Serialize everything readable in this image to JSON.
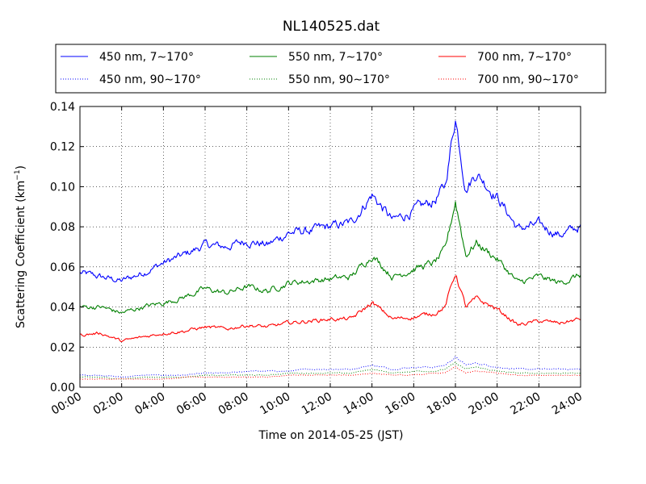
{
  "chart_data": {
    "type": "line",
    "title": "NL140525.dat",
    "xlabel": "Time on 2014-05-25 (JST)",
    "ylabel": "Scattering Coefficient (km⁻¹)",
    "ylabel_main": "Scattering Coefficient (km",
    "ylabel_sup": "−1",
    "ylabel_close": ")",
    "xlim": [
      "00:00",
      "24:00"
    ],
    "ylim": [
      0.0,
      0.14
    ],
    "grid": true,
    "legend_position": "top (above plot)",
    "xticks": [
      "00:00",
      "02:00",
      "04:00",
      "06:00",
      "08:00",
      "10:00",
      "12:00",
      "14:00",
      "16:00",
      "18:00",
      "20:00",
      "22:00",
      "24:00"
    ],
    "yticks": [
      "0.00",
      "0.02",
      "0.04",
      "0.06",
      "0.08",
      "0.10",
      "0.12",
      "0.14"
    ],
    "x": [
      "00:00",
      "01:00",
      "02:00",
      "03:00",
      "04:00",
      "05:00",
      "06:00",
      "07:00",
      "08:00",
      "09:00",
      "10:00",
      "11:00",
      "12:00",
      "13:00",
      "14:00",
      "15:00",
      "16:00",
      "17:00",
      "17:30",
      "18:00",
      "18:30",
      "19:00",
      "20:00",
      "21:00",
      "22:00",
      "23:00",
      "24:00"
    ],
    "series": [
      {
        "name": "450 nm, 7∼170°",
        "color": "#0000ff",
        "style": "solid",
        "values": [
          0.057,
          0.055,
          0.053,
          0.057,
          0.062,
          0.066,
          0.071,
          0.07,
          0.073,
          0.071,
          0.077,
          0.078,
          0.08,
          0.082,
          0.096,
          0.083,
          0.088,
          0.093,
          0.1,
          0.135,
          0.099,
          0.107,
          0.095,
          0.079,
          0.081,
          0.076,
          0.08
        ]
      },
      {
        "name": "450 nm, 90∼170°",
        "color": "#0000ff",
        "style": "dotted",
        "values": [
          0.006,
          0.006,
          0.005,
          0.006,
          0.006,
          0.006,
          0.007,
          0.007,
          0.008,
          0.008,
          0.008,
          0.009,
          0.009,
          0.009,
          0.011,
          0.009,
          0.01,
          0.01,
          0.011,
          0.015,
          0.011,
          0.012,
          0.01,
          0.009,
          0.009,
          0.009,
          0.009
        ]
      },
      {
        "name": "550 nm, 7∼170°",
        "color": "#008000",
        "style": "solid",
        "values": [
          0.04,
          0.04,
          0.037,
          0.04,
          0.042,
          0.045,
          0.049,
          0.047,
          0.05,
          0.048,
          0.052,
          0.053,
          0.054,
          0.055,
          0.066,
          0.055,
          0.059,
          0.062,
          0.068,
          0.093,
          0.066,
          0.072,
          0.064,
          0.052,
          0.055,
          0.052,
          0.056
        ]
      },
      {
        "name": "550 nm, 90∼170°",
        "color": "#008000",
        "style": "dotted",
        "values": [
          0.005,
          0.005,
          0.004,
          0.005,
          0.005,
          0.005,
          0.006,
          0.006,
          0.006,
          0.006,
          0.007,
          0.007,
          0.007,
          0.007,
          0.009,
          0.007,
          0.008,
          0.008,
          0.009,
          0.012,
          0.009,
          0.01,
          0.008,
          0.007,
          0.007,
          0.007,
          0.007
        ]
      },
      {
        "name": "700 nm, 7∼170°",
        "color": "#ff0000",
        "style": "solid",
        "values": [
          0.026,
          0.027,
          0.023,
          0.025,
          0.027,
          0.028,
          0.03,
          0.029,
          0.031,
          0.03,
          0.032,
          0.033,
          0.034,
          0.034,
          0.042,
          0.034,
          0.035,
          0.037,
          0.04,
          0.057,
          0.04,
          0.044,
          0.039,
          0.031,
          0.033,
          0.032,
          0.034
        ]
      },
      {
        "name": "700 nm, 90∼170°",
        "color": "#ff0000",
        "style": "dotted",
        "values": [
          0.004,
          0.004,
          0.004,
          0.004,
          0.004,
          0.005,
          0.005,
          0.005,
          0.005,
          0.005,
          0.006,
          0.006,
          0.006,
          0.006,
          0.007,
          0.006,
          0.006,
          0.007,
          0.007,
          0.01,
          0.007,
          0.008,
          0.007,
          0.006,
          0.006,
          0.006,
          0.006
        ]
      }
    ]
  }
}
